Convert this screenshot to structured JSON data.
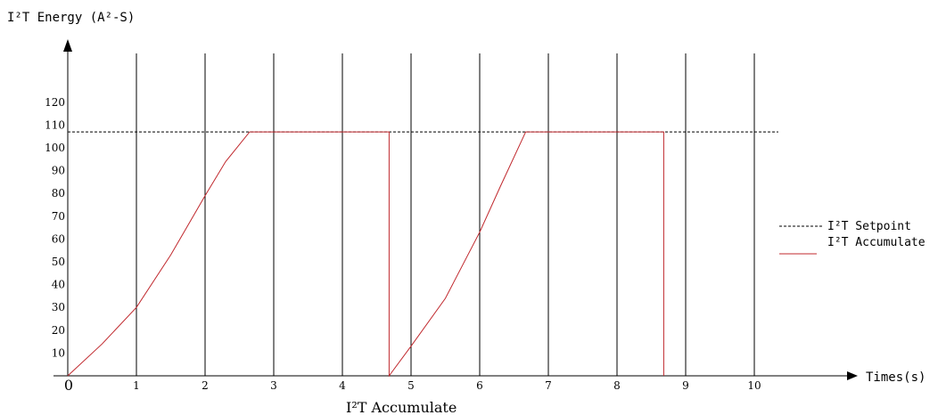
{
  "chart_data": {
    "type": "line",
    "ylabel": "I²T Energy (A²-S)",
    "xlabel": "Times(s)",
    "caption": "I²T Accumulate",
    "origin_label": "0",
    "x_ticks": [
      "1",
      "2",
      "3",
      "4",
      "5",
      "6",
      "7",
      "8",
      "9",
      "10"
    ],
    "y_ticks": [
      "10",
      "20",
      "30",
      "40",
      "50",
      "60",
      "70",
      "80",
      "90",
      "100",
      "110",
      "120"
    ],
    "xlim": [
      0,
      10
    ],
    "ylim": [
      0,
      120
    ],
    "vertical_grid": true,
    "legend_position": "right",
    "series": [
      {
        "name": "I²T Setpoint",
        "style": "dashed",
        "color": "#000000",
        "x": [
          0,
          10.35
        ],
        "y": [
          107,
          107
        ]
      },
      {
        "name": "I²T Accumulate",
        "style": "solid",
        "color": "#c0282d",
        "x": [
          0,
          0.5,
          1.0,
          1.5,
          2.0,
          2.3,
          2.65,
          4.68,
          4.68,
          4.68,
          5.0,
          5.5,
          6.0,
          6.3,
          6.67,
          8.68,
          8.68
        ],
        "y": [
          0,
          14,
          30,
          53,
          79,
          94,
          107,
          107,
          107,
          0,
          13,
          34,
          63,
          83,
          107,
          107,
          0
        ]
      }
    ]
  }
}
